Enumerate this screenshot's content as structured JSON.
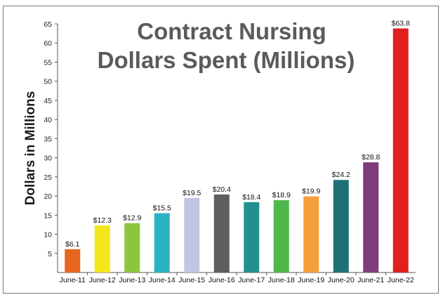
{
  "chart_data": {
    "type": "bar",
    "title_lines": [
      "Contract Nursing",
      "Dollars Spent (Millions)"
    ],
    "xlabel": "",
    "ylabel": "Dollars in Millions",
    "ylim": [
      0,
      65
    ],
    "yticks": [
      5,
      10,
      15,
      20,
      25,
      30,
      35,
      40,
      45,
      50,
      55,
      60,
      65
    ],
    "categories": [
      "June-11",
      "June-12",
      "June-13",
      "June-14",
      "June-15",
      "June-16",
      "June-17",
      "June-18",
      "June-19",
      "June-20",
      "June-21",
      "June-22"
    ],
    "values": [
      6.1,
      12.3,
      12.9,
      15.5,
      19.5,
      20.4,
      18.4,
      18.9,
      19.9,
      24.2,
      28.8,
      63.8
    ],
    "data_labels": [
      "$6.1",
      "$12.3",
      "$12.9",
      "$15.5",
      "$19.5",
      "$20.4",
      "$18.4",
      "$18.9",
      "$19.9",
      "$24.2",
      "$28.8",
      "$63.8"
    ],
    "colors": [
      "#e8651e",
      "#f5e61c",
      "#8cc63f",
      "#2bb3c0",
      "#c4c4e4",
      "#5e5e5e",
      "#23908f",
      "#4fb84a",
      "#f5a03c",
      "#1e6f78",
      "#7e3d7a",
      "#e0201e"
    ],
    "grid": false,
    "legend": "none"
  }
}
